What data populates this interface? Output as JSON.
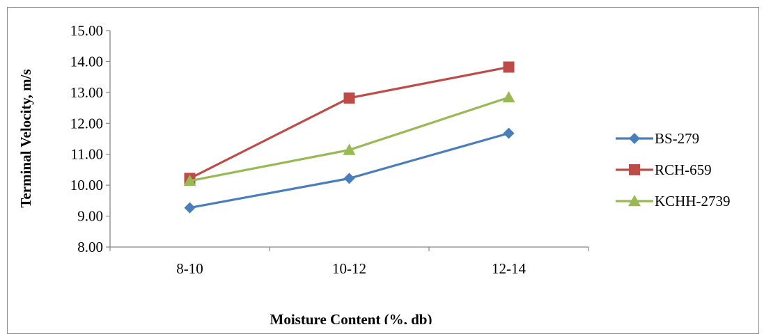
{
  "chart_data": {
    "type": "line",
    "categories": [
      "8-10",
      "10-12",
      "12-14"
    ],
    "series": [
      {
        "name": "BS-279",
        "values": [
          9.27,
          10.22,
          11.68
        ],
        "color": "#4a7ebb",
        "marker": "diamond"
      },
      {
        "name": "RCH-659",
        "values": [
          10.22,
          12.82,
          13.82
        ],
        "color": "#be4b48",
        "marker": "square"
      },
      {
        "name": "KCHH-2739",
        "values": [
          10.14,
          11.14,
          12.84
        ],
        "color": "#98b954",
        "marker": "triangle"
      }
    ],
    "xlabel": "Moisture Content (%, db)",
    "ylabel": "Terminal Velocity, m/s",
    "ylim": [
      8,
      15
    ],
    "yticks": [
      "8.00",
      "9.00",
      "10.00",
      "11.00",
      "12.00",
      "13.00",
      "14.00",
      "15.00"
    ],
    "grid": false,
    "legend": "right"
  }
}
